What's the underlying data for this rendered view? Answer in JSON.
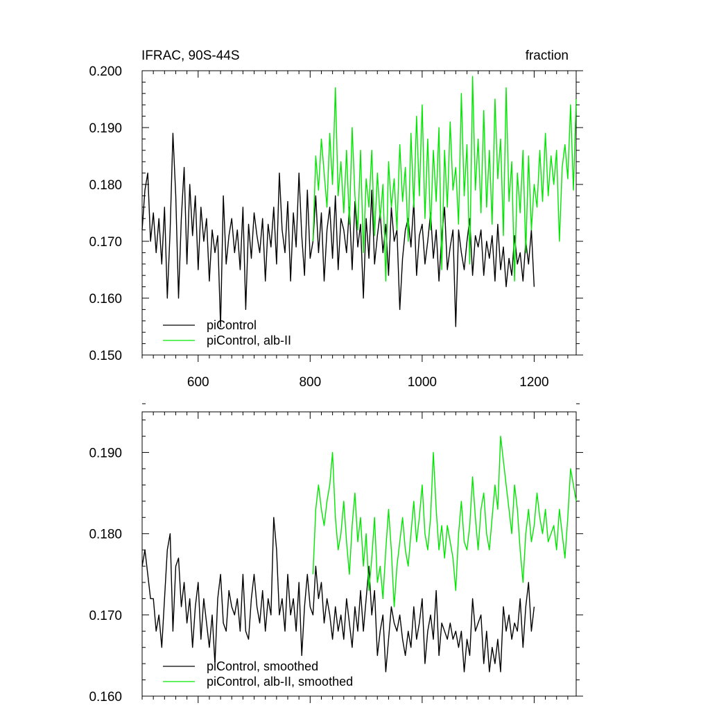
{
  "chart_data": [
    {
      "type": "line",
      "title": "IFRAC, 90S-44S",
      "units": "fraction",
      "xlim": [
        500,
        1275
      ],
      "ylim": [
        0.15,
        0.2
      ],
      "x_ticks": [
        600,
        800,
        1000,
        1200
      ],
      "x_tick_labels": [
        "600",
        "800",
        "1000",
        "1200"
      ],
      "y_ticks": [
        0.15,
        0.16,
        0.17,
        0.18,
        0.19,
        0.2
      ],
      "y_tick_labels": [
        "0.150",
        "0.160",
        "0.170",
        "0.180",
        "0.190",
        "0.200"
      ],
      "legend_position": "bottom-left",
      "series": [
        {
          "name": "piControl",
          "color": "#000000",
          "x": [
            500,
            505,
            510,
            515,
            520,
            525,
            530,
            535,
            540,
            545,
            550,
            555,
            560,
            565,
            570,
            575,
            580,
            585,
            590,
            595,
            600,
            605,
            610,
            615,
            620,
            625,
            630,
            635,
            640,
            645,
            650,
            655,
            660,
            665,
            670,
            675,
            680,
            685,
            690,
            695,
            700,
            705,
            710,
            715,
            720,
            725,
            730,
            735,
            740,
            745,
            750,
            755,
            760,
            765,
            770,
            775,
            780,
            785,
            790,
            795,
            800,
            805,
            810,
            815,
            820,
            825,
            830,
            835,
            840,
            845,
            850,
            855,
            860,
            865,
            870,
            875,
            880,
            885,
            890,
            895,
            900,
            905,
            910,
            915,
            920,
            925,
            930,
            935,
            940,
            945,
            950,
            955,
            960,
            965,
            970,
            975,
            980,
            985,
            990,
            995,
            1000,
            1005,
            1010,
            1015,
            1020,
            1025,
            1030,
            1035,
            1040,
            1045,
            1050,
            1055,
            1060,
            1065,
            1070,
            1075,
            1080,
            1085,
            1090,
            1095,
            1100,
            1105,
            1110,
            1115,
            1120,
            1125,
            1130,
            1135,
            1140,
            1145,
            1150,
            1155,
            1160,
            1165,
            1170,
            1175,
            1180,
            1185,
            1190,
            1195,
            1200
          ],
          "y": [
            0.172,
            0.179,
            0.182,
            0.17,
            0.175,
            0.168,
            0.174,
            0.166,
            0.176,
            0.16,
            0.172,
            0.189,
            0.178,
            0.16,
            0.174,
            0.183,
            0.166,
            0.18,
            0.171,
            0.178,
            0.165,
            0.176,
            0.17,
            0.174,
            0.163,
            0.172,
            0.168,
            0.171,
            0.155,
            0.178,
            0.166,
            0.171,
            0.174,
            0.168,
            0.172,
            0.165,
            0.176,
            0.158,
            0.173,
            0.167,
            0.175,
            0.171,
            0.168,
            0.174,
            0.163,
            0.173,
            0.169,
            0.176,
            0.166,
            0.182,
            0.172,
            0.168,
            0.177,
            0.163,
            0.175,
            0.169,
            0.182,
            0.171,
            0.164,
            0.179,
            0.167,
            0.17,
            0.178,
            0.168,
            0.175,
            0.163,
            0.172,
            0.176,
            0.167,
            0.178,
            0.165,
            0.174,
            0.172,
            0.168,
            0.176,
            0.165,
            0.177,
            0.169,
            0.173,
            0.16,
            0.174,
            0.167,
            0.179,
            0.166,
            0.171,
            0.175,
            0.168,
            0.173,
            0.164,
            0.176,
            0.17,
            0.172,
            0.158,
            0.167,
            0.172,
            0.174,
            0.169,
            0.177,
            0.164,
            0.171,
            0.173,
            0.166,
            0.17,
            0.175,
            0.167,
            0.172,
            0.163,
            0.171,
            0.176,
            0.165,
            0.169,
            0.172,
            0.155,
            0.172,
            0.168,
            0.165,
            0.17,
            0.174,
            0.164,
            0.171,
            0.169,
            0.172,
            0.164,
            0.17,
            0.167,
            0.171,
            0.163,
            0.173,
            0.165,
            0.169,
            0.162,
            0.167,
            0.164,
            0.171,
            0.166,
            0.168,
            0.163,
            0.17,
            0.166,
            0.172,
            0.162
          ],
          "smoothed_y": [
            0.176,
            0.178,
            0.175,
            0.172,
            0.172,
            0.168,
            0.17,
            0.166,
            0.172,
            0.178,
            0.18,
            0.168,
            0.176,
            0.177,
            0.171,
            0.174,
            0.169,
            0.172,
            0.166,
            0.171,
            0.174,
            0.167,
            0.172,
            0.169,
            0.166,
            0.17,
            0.164,
            0.172,
            0.175,
            0.169,
            0.168,
            0.173,
            0.171,
            0.17,
            0.172,
            0.168,
            0.175,
            0.168,
            0.167,
            0.172,
            0.175,
            0.171,
            0.169,
            0.173,
            0.168,
            0.172,
            0.17,
            0.182,
            0.178,
            0.17,
            0.172,
            0.168,
            0.175,
            0.17,
            0.172,
            0.168,
            0.174,
            0.165,
            0.171,
            0.175,
            0.171,
            0.17,
            0.176,
            0.172,
            0.174,
            0.169,
            0.172,
            0.17,
            0.167,
            0.171,
            0.168,
            0.17,
            0.167,
            0.172,
            0.169,
            0.166,
            0.171,
            0.168,
            0.173,
            0.168,
            0.172,
            0.176,
            0.17,
            0.173,
            0.165,
            0.168,
            0.17,
            0.163,
            0.167,
            0.171,
            0.169,
            0.168,
            0.17,
            0.167,
            0.165,
            0.168,
            0.166,
            0.171,
            0.167,
            0.169,
            0.172,
            0.164,
            0.168,
            0.17,
            0.167,
            0.173,
            0.165,
            0.169,
            0.168,
            0.167,
            0.169,
            0.167,
            0.168,
            0.166,
            0.168,
            0.163,
            0.167,
            0.165,
            0.172,
            0.168,
            0.169,
            0.17,
            0.164,
            0.168,
            0.163,
            0.166,
            0.164,
            0.167,
            0.163,
            0.171,
            0.168,
            0.17,
            0.167,
            0.169,
            0.168,
            0.172,
            0.166,
            0.171,
            0.174,
            0.168,
            0.171
          ]
        },
        {
          "name": "piControl, alb-II",
          "color": "#00e600",
          "x": [
            805,
            810,
            815,
            820,
            825,
            830,
            835,
            840,
            845,
            850,
            855,
            860,
            865,
            870,
            875,
            880,
            885,
            890,
            895,
            900,
            905,
            910,
            915,
            920,
            925,
            930,
            935,
            940,
            945,
            950,
            955,
            960,
            965,
            970,
            975,
            980,
            985,
            990,
            995,
            1000,
            1005,
            1010,
            1015,
            1020,
            1025,
            1030,
            1035,
            1040,
            1045,
            1050,
            1055,
            1060,
            1065,
            1070,
            1075,
            1080,
            1085,
            1090,
            1095,
            1100,
            1105,
            1110,
            1115,
            1120,
            1125,
            1130,
            1135,
            1140,
            1145,
            1150,
            1155,
            1160,
            1165,
            1170,
            1175,
            1180,
            1185,
            1190,
            1195,
            1200,
            1205,
            1210,
            1215,
            1220,
            1225,
            1230,
            1235,
            1240,
            1245,
            1250,
            1255,
            1260,
            1265,
            1270,
            1275
          ],
          "y": [
            0.17,
            0.185,
            0.179,
            0.188,
            0.182,
            0.176,
            0.189,
            0.18,
            0.197,
            0.178,
            0.184,
            0.175,
            0.186,
            0.173,
            0.19,
            0.178,
            0.172,
            0.186,
            0.168,
            0.181,
            0.176,
            0.186,
            0.171,
            0.182,
            0.174,
            0.18,
            0.163,
            0.184,
            0.176,
            0.181,
            0.172,
            0.187,
            0.177,
            0.183,
            0.17,
            0.189,
            0.176,
            0.192,
            0.178,
            0.194,
            0.174,
            0.188,
            0.172,
            0.186,
            0.177,
            0.19,
            0.165,
            0.186,
            0.176,
            0.191,
            0.179,
            0.183,
            0.173,
            0.196,
            0.178,
            0.187,
            0.166,
            0.199,
            0.179,
            0.188,
            0.175,
            0.193,
            0.176,
            0.186,
            0.173,
            0.195,
            0.181,
            0.188,
            0.171,
            0.197,
            0.177,
            0.184,
            0.163,
            0.182,
            0.175,
            0.186,
            0.168,
            0.185,
            0.172,
            0.18,
            0.176,
            0.186,
            0.177,
            0.189,
            0.178,
            0.185,
            0.18,
            0.186,
            0.17,
            0.183,
            0.187,
            0.181,
            0.194,
            0.179,
            0.195
          ],
          "smoothed_y": [
            0.175,
            0.183,
            0.186,
            0.183,
            0.181,
            0.184,
            0.186,
            0.19,
            0.182,
            0.178,
            0.18,
            0.184,
            0.179,
            0.175,
            0.181,
            0.185,
            0.179,
            0.182,
            0.176,
            0.18,
            0.173,
            0.177,
            0.182,
            0.174,
            0.176,
            0.172,
            0.178,
            0.183,
            0.178,
            0.171,
            0.176,
            0.179,
            0.182,
            0.178,
            0.176,
            0.18,
            0.184,
            0.179,
            0.182,
            0.186,
            0.18,
            0.178,
            0.182,
            0.19,
            0.183,
            0.178,
            0.181,
            0.177,
            0.181,
            0.179,
            0.177,
            0.173,
            0.18,
            0.184,
            0.179,
            0.178,
            0.181,
            0.187,
            0.182,
            0.178,
            0.183,
            0.185,
            0.18,
            0.178,
            0.182,
            0.186,
            0.183,
            0.192,
            0.189,
            0.186,
            0.183,
            0.18,
            0.186,
            0.183,
            0.178,
            0.174,
            0.18,
            0.183,
            0.179,
            0.181,
            0.185,
            0.182,
            0.18,
            0.183,
            0.179,
            0.18,
            0.181,
            0.178,
            0.183,
            0.18,
            0.177,
            0.182,
            0.188,
            0.186,
            0.184
          ]
        }
      ]
    },
    {
      "type": "line",
      "xlim": [
        500,
        1275
      ],
      "ylim": [
        0.16,
        0.195
      ],
      "x_ticks": [
        600,
        800,
        1000,
        1200
      ],
      "y_ticks": [
        0.16,
        0.17,
        0.18,
        0.19
      ],
      "y_tick_labels": [
        "0.160",
        "0.170",
        "0.180",
        "0.190"
      ],
      "legend_position": "bottom-left",
      "series": [
        {
          "name": "piControl, smoothed",
          "color": "#000000"
        },
        {
          "name": "piControl, alb-II, smoothed",
          "color": "#00e600"
        }
      ]
    }
  ]
}
